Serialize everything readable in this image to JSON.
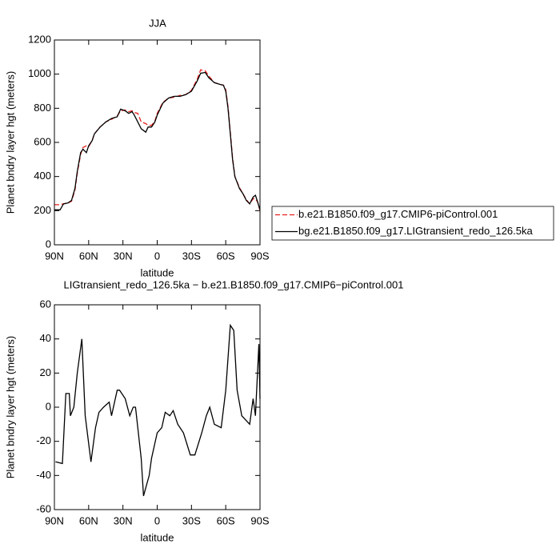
{
  "chart_data": [
    {
      "type": "line",
      "title": "JJA",
      "xlabel": "latitude",
      "ylabel": "Planet bndry layer hgt (meters)",
      "xlim": [
        90,
        -90
      ],
      "xticks": [
        {
          "value": 90,
          "label": "90N"
        },
        {
          "value": 60,
          "label": "60N"
        },
        {
          "value": 30,
          "label": "30N"
        },
        {
          "value": 0,
          "label": "0"
        },
        {
          "value": -30,
          "label": "30S"
        },
        {
          "value": -60,
          "label": "60S"
        },
        {
          "value": -90,
          "label": "90S"
        }
      ],
      "ylim": [
        0,
        1200
      ],
      "yticks": [
        0,
        200,
        400,
        600,
        800,
        1000,
        1200
      ],
      "legend": "right",
      "x": [
        90,
        85,
        82,
        78,
        75,
        72,
        70,
        67,
        65,
        62,
        60,
        57,
        55,
        50,
        45,
        40,
        35,
        32,
        28,
        25,
        22,
        20,
        17,
        14,
        10,
        8,
        5,
        2,
        0,
        -5,
        -10,
        -15,
        -20,
        -25,
        -30,
        -35,
        -38,
        -42,
        -45,
        -50,
        -55,
        -58,
        -60,
        -62,
        -64,
        -66,
        -68,
        -72,
        -75,
        -78,
        -81,
        -84,
        -86,
        -88,
        -90
      ],
      "series": [
        {
          "name": "b.e21.B1850.f09_g17.CMIP6-piControl.001",
          "color": "#e8201c",
          "line_style": "dashed",
          "values": [
            235,
            235,
            240,
            245,
            255,
            320,
            420,
            530,
            570,
            580,
            575,
            610,
            650,
            690,
            720,
            735,
            755,
            785,
            790,
            780,
            785,
            775,
            770,
            720,
            710,
            700,
            700,
            725,
            770,
            835,
            860,
            865,
            875,
            880,
            905,
            970,
            1025,
            1020,
            990,
            950,
            940,
            935,
            910,
            810,
            660,
            510,
            400,
            335,
            300,
            265,
            240,
            270,
            270,
            250,
            200
          ]
        },
        {
          "name": "bg.e21.B1850.f09_g17.LIGtransient_redo_126.5ka",
          "color": "#000000",
          "line_style": "solid",
          "values": [
            205,
            205,
            240,
            245,
            260,
            330,
            430,
            540,
            560,
            540,
            580,
            610,
            650,
            690,
            720,
            740,
            750,
            795,
            785,
            770,
            780,
            760,
            720,
            680,
            660,
            690,
            690,
            720,
            760,
            830,
            860,
            870,
            870,
            880,
            900,
            960,
            1005,
            1010,
            980,
            950,
            940,
            935,
            900,
            800,
            650,
            500,
            400,
            330,
            300,
            260,
            240,
            280,
            290,
            250,
            205
          ]
        }
      ]
    },
    {
      "type": "line",
      "title": "LIGtransient_redo_126.5ka − b.e21.B1850.f09_g17.CMIP6−piControl.001",
      "xlabel": "latitude",
      "ylabel": "Planet bndry layer hgt (meters)",
      "xlim": [
        90,
        -90
      ],
      "xticks": [
        {
          "value": 90,
          "label": "90N"
        },
        {
          "value": 60,
          "label": "60N"
        },
        {
          "value": 30,
          "label": "30N"
        },
        {
          "value": 0,
          "label": "0"
        },
        {
          "value": -30,
          "label": "30S"
        },
        {
          "value": -60,
          "label": "60S"
        },
        {
          "value": -90,
          "label": "90S"
        }
      ],
      "ylim": [
        -60,
        60
      ],
      "yticks": [
        -60,
        -40,
        -20,
        0,
        20,
        40,
        60
      ],
      "x": [
        89,
        83,
        80,
        77,
        76,
        73,
        70,
        66,
        63,
        58,
        54,
        51,
        47,
        42,
        40,
        35,
        33,
        28,
        24,
        21,
        19,
        14,
        12,
        7,
        5,
        0,
        -4,
        -7,
        -11,
        -14,
        -18,
        -23,
        -29,
        -33,
        -39,
        -43,
        -46,
        -50,
        -56,
        -60,
        -64,
        -67,
        -70,
        -74,
        -81,
        -84,
        -86,
        -89,
        -90
      ],
      "color": "#000000",
      "values": [
        -32,
        -33,
        8,
        8,
        -5,
        0,
        20,
        40,
        -5,
        -32,
        -12,
        -3,
        0,
        3,
        -5,
        10,
        10,
        5,
        -5,
        0,
        0,
        -30,
        -52,
        -40,
        -30,
        -15,
        -12,
        -3,
        -5,
        -2,
        -10,
        -15,
        -28,
        -28,
        -15,
        -5,
        0,
        -10,
        -12,
        10,
        48,
        45,
        10,
        -5,
        -10,
        5,
        -5,
        37,
        5
      ]
    }
  ]
}
